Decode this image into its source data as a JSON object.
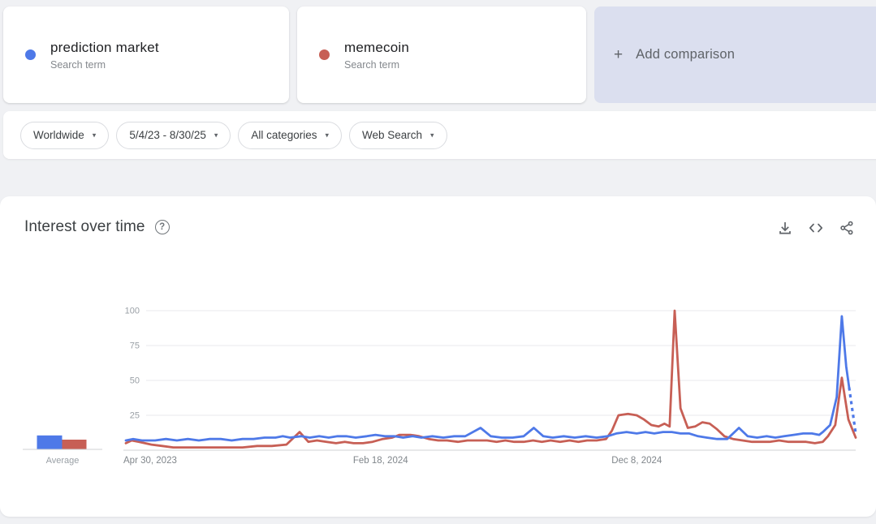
{
  "icons": {
    "plus": "+",
    "chevron_down": "▾",
    "help_glyph": "?"
  },
  "colors": {
    "blue": "#4e79e8",
    "red": "#c75f55",
    "page_bg": "#f0f1f4",
    "add_card_bg": "#dbdfef",
    "grid": "#e8eaed",
    "axis": "#cfd1d3",
    "tick_text": "#9aa0a6",
    "label_text": "#80868b",
    "title_text": "#3c4043",
    "control_text": "#5f6368"
  },
  "terms": [
    {
      "label": "prediction market",
      "sublabel": "Search term",
      "color": "#4e79e8"
    },
    {
      "label": "memecoin",
      "sublabel": "Search term",
      "color": "#c75f55"
    }
  ],
  "add_comparison": {
    "label": "Add comparison"
  },
  "filters": [
    {
      "label": "Worldwide"
    },
    {
      "label": "5/4/23 - 8/30/25"
    },
    {
      "label": "All categories"
    },
    {
      "label": "Web Search"
    }
  ],
  "widget": {
    "title": "Interest over time"
  },
  "chart_data": {
    "type": "line",
    "title": "Interest over time",
    "xlabel": "",
    "ylabel": "",
    "date_range": {
      "start": "2023-04-30",
      "end": "2025-08-30"
    },
    "ylim": [
      0,
      100
    ],
    "y_ticks": [
      25,
      50,
      75,
      100
    ],
    "grid": true,
    "x_ticks": [
      {
        "label": "Apr 30, 2023",
        "f": 0.0,
        "align": "left"
      },
      {
        "label": "Feb 18, 2024",
        "f": 0.349,
        "align": "middle"
      },
      {
        "label": "Dec 8, 2024",
        "f": 0.7,
        "align": "middle"
      }
    ],
    "note": "x given as fraction of time axis between start and end dates; y = search interest 0-100",
    "series": [
      {
        "name": "prediction market",
        "color": "#4e79e8",
        "points": [
          [
            0.0,
            7
          ],
          [
            0.01,
            8
          ],
          [
            0.022,
            7
          ],
          [
            0.04,
            7
          ],
          [
            0.055,
            8
          ],
          [
            0.07,
            7
          ],
          [
            0.085,
            8
          ],
          [
            0.1,
            7
          ],
          [
            0.115,
            8
          ],
          [
            0.13,
            8
          ],
          [
            0.145,
            7
          ],
          [
            0.16,
            8
          ],
          [
            0.175,
            8
          ],
          [
            0.19,
            9
          ],
          [
            0.205,
            9
          ],
          [
            0.215,
            10
          ],
          [
            0.225,
            9
          ],
          [
            0.24,
            10
          ],
          [
            0.252,
            9
          ],
          [
            0.265,
            10
          ],
          [
            0.278,
            9
          ],
          [
            0.29,
            10
          ],
          [
            0.302,
            10
          ],
          [
            0.315,
            9
          ],
          [
            0.33,
            10
          ],
          [
            0.342,
            11
          ],
          [
            0.355,
            10
          ],
          [
            0.368,
            10
          ],
          [
            0.38,
            9
          ],
          [
            0.393,
            10
          ],
          [
            0.405,
            9
          ],
          [
            0.42,
            10
          ],
          [
            0.435,
            9
          ],
          [
            0.45,
            10
          ],
          [
            0.465,
            10
          ],
          [
            0.486,
            16
          ],
          [
            0.5,
            10
          ],
          [
            0.515,
            9
          ],
          [
            0.53,
            9
          ],
          [
            0.545,
            10
          ],
          [
            0.559,
            16
          ],
          [
            0.572,
            10
          ],
          [
            0.585,
            9
          ],
          [
            0.6,
            10
          ],
          [
            0.615,
            9
          ],
          [
            0.63,
            10
          ],
          [
            0.645,
            9
          ],
          [
            0.66,
            10
          ],
          [
            0.672,
            12
          ],
          [
            0.686,
            13
          ],
          [
            0.7,
            12
          ],
          [
            0.712,
            13
          ],
          [
            0.724,
            12
          ],
          [
            0.736,
            13
          ],
          [
            0.748,
            13
          ],
          [
            0.76,
            12
          ],
          [
            0.772,
            12
          ],
          [
            0.784,
            10
          ],
          [
            0.796,
            9
          ],
          [
            0.81,
            8
          ],
          [
            0.824,
            8
          ],
          [
            0.84,
            16
          ],
          [
            0.852,
            10
          ],
          [
            0.865,
            9
          ],
          [
            0.878,
            10
          ],
          [
            0.89,
            9
          ],
          [
            0.902,
            10
          ],
          [
            0.915,
            11
          ],
          [
            0.928,
            12
          ],
          [
            0.94,
            12
          ],
          [
            0.95,
            11
          ],
          [
            0.955,
            13
          ],
          [
            0.965,
            18
          ],
          [
            0.974,
            38
          ],
          [
            0.981,
            96
          ],
          [
            0.987,
            60
          ],
          [
            0.991,
            45
          ]
        ],
        "dashed_tail": [
          [
            0.991,
            45
          ],
          [
            1.0,
            12
          ]
        ]
      },
      {
        "name": "memecoin",
        "color": "#c75f55",
        "points": [
          [
            0.0,
            5
          ],
          [
            0.008,
            7
          ],
          [
            0.018,
            6
          ],
          [
            0.035,
            4
          ],
          [
            0.05,
            3
          ],
          [
            0.065,
            2
          ],
          [
            0.08,
            2
          ],
          [
            0.1,
            2
          ],
          [
            0.12,
            2
          ],
          [
            0.14,
            2
          ],
          [
            0.16,
            2
          ],
          [
            0.18,
            3
          ],
          [
            0.2,
            3
          ],
          [
            0.22,
            4
          ],
          [
            0.238,
            13
          ],
          [
            0.25,
            6
          ],
          [
            0.262,
            7
          ],
          [
            0.275,
            6
          ],
          [
            0.288,
            5
          ],
          [
            0.3,
            6
          ],
          [
            0.312,
            5
          ],
          [
            0.325,
            5
          ],
          [
            0.338,
            6
          ],
          [
            0.352,
            8
          ],
          [
            0.365,
            9
          ],
          [
            0.375,
            11
          ],
          [
            0.39,
            11
          ],
          [
            0.402,
            10
          ],
          [
            0.415,
            8
          ],
          [
            0.428,
            7
          ],
          [
            0.44,
            7
          ],
          [
            0.455,
            6
          ],
          [
            0.468,
            7
          ],
          [
            0.48,
            7
          ],
          [
            0.495,
            7
          ],
          [
            0.508,
            6
          ],
          [
            0.52,
            7
          ],
          [
            0.532,
            6
          ],
          [
            0.545,
            6
          ],
          [
            0.558,
            7
          ],
          [
            0.57,
            6
          ],
          [
            0.582,
            7
          ],
          [
            0.595,
            6
          ],
          [
            0.608,
            7
          ],
          [
            0.62,
            6
          ],
          [
            0.632,
            7
          ],
          [
            0.645,
            7
          ],
          [
            0.658,
            8
          ],
          [
            0.666,
            14
          ],
          [
            0.675,
            25
          ],
          [
            0.688,
            26
          ],
          [
            0.7,
            25
          ],
          [
            0.71,
            22
          ],
          [
            0.72,
            18
          ],
          [
            0.73,
            17
          ],
          [
            0.738,
            19
          ],
          [
            0.745,
            17
          ],
          [
            0.752,
            100
          ],
          [
            0.76,
            30
          ],
          [
            0.77,
            16
          ],
          [
            0.78,
            17
          ],
          [
            0.79,
            20
          ],
          [
            0.8,
            19
          ],
          [
            0.81,
            15
          ],
          [
            0.82,
            10
          ],
          [
            0.832,
            8
          ],
          [
            0.845,
            7
          ],
          [
            0.858,
            6
          ],
          [
            0.87,
            6
          ],
          [
            0.882,
            6
          ],
          [
            0.895,
            7
          ],
          [
            0.908,
            6
          ],
          [
            0.92,
            6
          ],
          [
            0.932,
            6
          ],
          [
            0.944,
            5
          ],
          [
            0.955,
            6
          ],
          [
            0.962,
            10
          ],
          [
            0.972,
            18
          ],
          [
            0.981,
            52
          ],
          [
            0.99,
            22
          ],
          [
            1.0,
            9
          ]
        ],
        "dashed_tail": []
      }
    ],
    "average": {
      "label": "Average",
      "values": [
        {
          "name": "prediction market",
          "value": 10,
          "color": "#4e79e8"
        },
        {
          "name": "memecoin",
          "value": 7,
          "color": "#c75f55"
        }
      ]
    }
  }
}
